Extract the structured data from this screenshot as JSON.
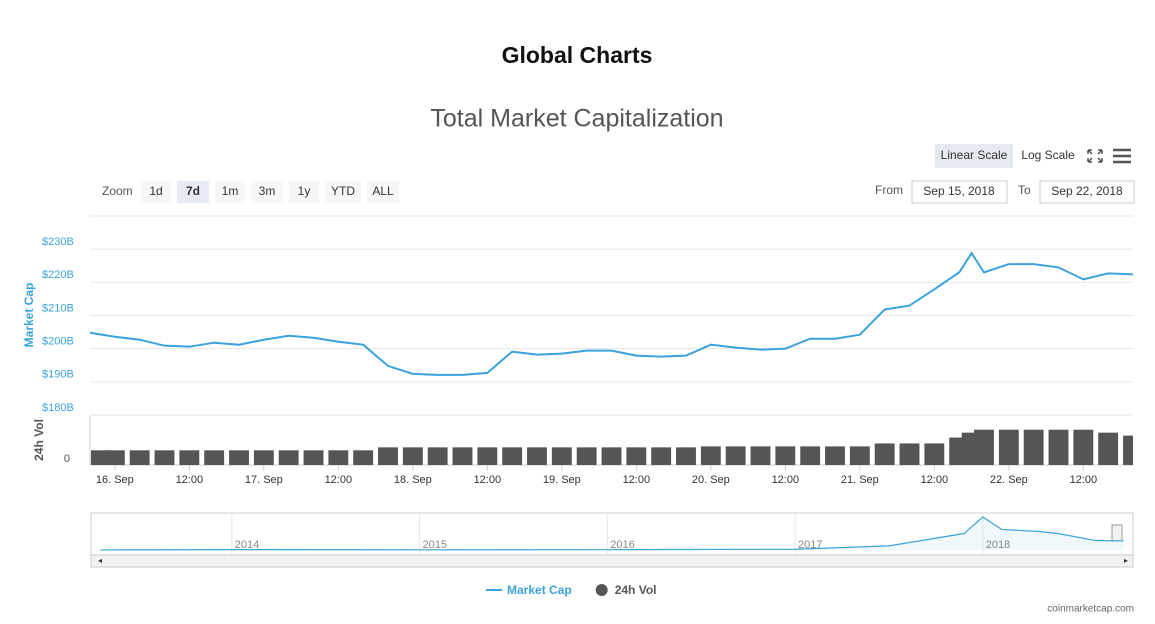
{
  "page_title": "Global Charts",
  "controls": {
    "scales": [
      "Linear Scale",
      "Log Scale"
    ],
    "scale_selected": 0,
    "zoom_label": "Zoom",
    "zoom": [
      "1d",
      "7d",
      "1m",
      "3m",
      "1y",
      "YTD",
      "ALL"
    ],
    "zoom_selected": 1,
    "from_label": "From",
    "from": "Sep 15, 2018",
    "to_label": "To",
    "to": "Sep 22, 2018"
  },
  "chart_data": {
    "type": "line",
    "title": "Total Market Capitalization",
    "y_label": "Market Cap",
    "y2_label": "24h Vol",
    "x": [
      -4,
      0,
      4,
      8,
      12,
      16,
      20,
      24,
      28,
      32,
      36,
      40,
      44,
      48,
      52,
      56,
      60,
      64,
      68,
      72,
      76,
      80,
      84,
      88,
      92,
      96,
      100,
      104,
      108,
      112,
      116,
      120,
      124,
      128,
      132,
      136,
      138,
      140,
      144,
      148,
      152,
      156,
      160,
      164
    ],
    "xlim": [
      -4,
      164
    ],
    "xticks": [
      {
        "value": 0,
        "label": "16. Sep"
      },
      {
        "value": 12,
        "label": "12:00"
      },
      {
        "value": 24,
        "label": "17. Sep"
      },
      {
        "value": 36,
        "label": "12:00"
      },
      {
        "value": 48,
        "label": "18. Sep"
      },
      {
        "value": 60,
        "label": "12:00"
      },
      {
        "value": 72,
        "label": "19. Sep"
      },
      {
        "value": 84,
        "label": "12:00"
      },
      {
        "value": 96,
        "label": "20. Sep"
      },
      {
        "value": 108,
        "label": "12:00"
      },
      {
        "value": 120,
        "label": "21. Sep"
      },
      {
        "value": 132,
        "label": "12:00"
      },
      {
        "value": 144,
        "label": "22. Sep"
      },
      {
        "value": 156,
        "label": "12:00"
      }
    ],
    "ylim": [
      180,
      240
    ],
    "yticks": [
      {
        "value": 180,
        "label": "$180B"
      },
      {
        "value": 190,
        "label": "$190B"
      },
      {
        "value": 200,
        "label": "$200B"
      },
      {
        "value": 210,
        "label": "$210B"
      },
      {
        "value": 220,
        "label": "$220B"
      },
      {
        "value": 230,
        "label": "$230B"
      }
    ],
    "y2lim": [
      0,
      50
    ],
    "y2ticks": [
      0
    ],
    "series": [
      {
        "name": "Market Cap",
        "color": "#3aa3dd",
        "values": [
          204.8,
          203.6,
          202.7,
          200.9,
          200.6,
          201.8,
          201.2,
          202.7,
          203.9,
          203.3,
          202.1,
          201.2,
          194.8,
          192.4,
          192.1,
          192.1,
          192.7,
          199.1,
          198.2,
          198.5,
          199.4,
          199.4,
          197.9,
          197.6,
          197.9,
          201.2,
          200.3,
          199.7,
          200.0,
          203.0,
          203.0,
          204.2,
          211.8,
          213.0,
          217.9,
          223.0,
          228.8,
          223.0,
          225.5,
          225.5,
          224.5,
          220.9,
          222.7,
          222.4
        ]
      },
      {
        "name": "24h Vol",
        "color": "#555555",
        "type": "bar",
        "axis": "y2",
        "values": [
          15,
          15,
          15,
          15,
          15,
          15,
          15,
          15,
          15,
          15,
          15,
          15,
          18,
          18,
          18,
          18,
          18,
          18,
          18,
          18,
          18,
          18,
          18,
          18,
          18,
          19,
          19,
          19,
          19,
          19,
          19,
          19,
          22,
          22,
          22,
          28,
          33,
          36,
          36,
          36,
          36,
          36,
          33,
          30
        ]
      }
    ],
    "navigator": {
      "x": [
        2013.3,
        2014,
        2015,
        2016,
        2017,
        2017.5,
        2017.9,
        2018.0,
        2018.1,
        2018.3,
        2018.4,
        2018.6,
        2018.75
      ],
      "values": [
        1,
        10,
        5,
        7,
        18,
        100,
        400,
        800,
        500,
        450,
        400,
        230,
        220
      ],
      "xlim": [
        2013.25,
        2018.8
      ],
      "ylim": [
        0,
        850
      ],
      "xticks": [
        2014,
        2015,
        2016,
        2017,
        2018
      ],
      "color": "#3aa3dd"
    }
  },
  "credit": "coinmarketcap.com"
}
